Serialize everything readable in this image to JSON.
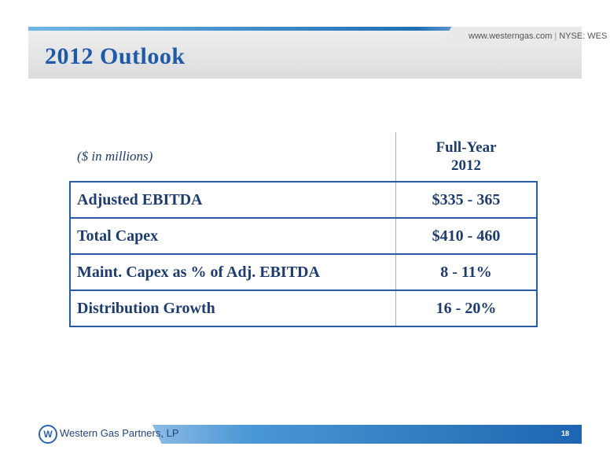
{
  "header": {
    "site_url": "www.westerngas.com",
    "ticker": "NYSE: WES",
    "title": "2012 Outlook"
  },
  "table": {
    "unit_note": "($ in millions)",
    "column_header_line1": "Full-Year",
    "column_header_line2": "2012",
    "rows": [
      {
        "label": "Adjusted EBITDA",
        "value": "$335 - 365"
      },
      {
        "label": "Total Capex",
        "value": "$410 - 460"
      },
      {
        "label": "Maint. Capex as % of Adj. EBITDA",
        "value": "8 - 11%"
      },
      {
        "label": "Distribution Growth",
        "value": "16 - 20%"
      }
    ]
  },
  "footer": {
    "logo_letter": "W",
    "company": "Western Gas Partners, LP",
    "page_number": "18"
  },
  "colors": {
    "title": "#1e5aa7",
    "table_text": "#1e3c6e",
    "table_border": "#2c5aa5"
  },
  "icons": {
    "logo": "western-gas-logo-icon"
  }
}
